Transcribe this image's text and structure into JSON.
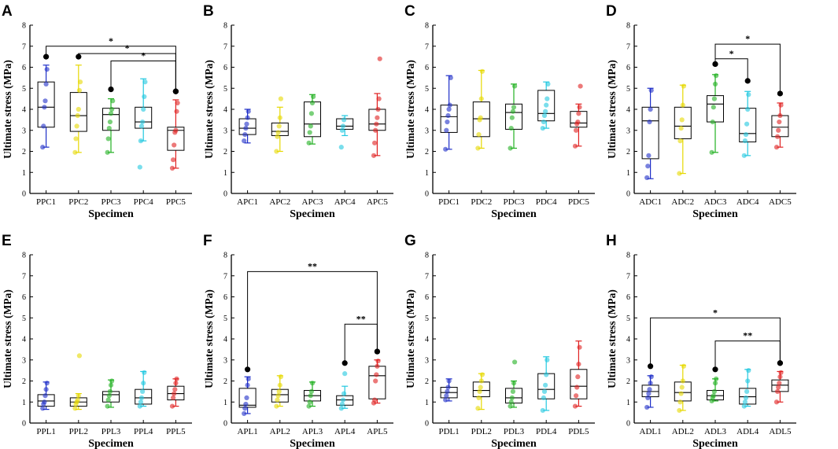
{
  "figure": {
    "ylabel": "Ultimate stress (MPa)",
    "xlabel": "Specimen",
    "ylim": [
      0,
      8
    ],
    "yticks": [
      0,
      1,
      2,
      3,
      4,
      5,
      6,
      7,
      8
    ]
  },
  "series_colors": [
    "#1f2fc8",
    "#e6d800",
    "#22b022",
    "#22c8e0",
    "#e02020"
  ],
  "chart_data": [
    {
      "panel": "A",
      "type": "box",
      "xlabel": "Specimen",
      "ylabel": "Ultimate stress (MPa)",
      "ylim": [
        0,
        8
      ],
      "categories": [
        "PPC1",
        "PPC2",
        "PPC3",
        "PPC4",
        "PPC5"
      ],
      "boxes": [
        {
          "q1": 3.15,
          "median": 4.1,
          "q3": 5.3,
          "min": 2.2,
          "max": 6.1
        },
        {
          "q1": 2.95,
          "median": 3.7,
          "q3": 4.8,
          "min": 1.95,
          "max": 6.1
        },
        {
          "q1": 3.0,
          "median": 3.75,
          "q3": 4.05,
          "min": 1.95,
          "max": 4.5
        },
        {
          "q1": 3.1,
          "median": 3.4,
          "q3": 4.1,
          "min": 2.5,
          "max": 5.45
        },
        {
          "q1": 2.05,
          "median": 3.0,
          "q3": 3.15,
          "min": 1.2,
          "max": 4.45
        }
      ],
      "points": [
        [
          2.2,
          3.2,
          4.1,
          4.4,
          5.2,
          5.9
        ],
        [
          1.95,
          2.6,
          3.2,
          3.7,
          4.0,
          4.9,
          5.3
        ],
        [
          1.95,
          2.6,
          3.1,
          3.4,
          3.8,
          4.0,
          4.4
        ],
        [
          1.25,
          2.5,
          3.2,
          3.4,
          4.0,
          4.6,
          5.3
        ],
        [
          1.2,
          1.6,
          2.3,
          2.9,
          3.0,
          3.9,
          4.3
        ]
      ],
      "significance": [
        {
          "from": "PPC1",
          "to": "PPC5",
          "label": "*",
          "y": 7.0,
          "ends": [
            6.5,
            4.85
          ]
        },
        {
          "from": "PPC2",
          "to": "PPC5",
          "label": "*",
          "y": 6.65,
          "ends": [
            6.5,
            4.85
          ]
        },
        {
          "from": "PPC3",
          "to": "PPC5",
          "label": "*",
          "y": 6.3,
          "ends": [
            4.95,
            4.85
          ]
        }
      ]
    },
    {
      "panel": "B",
      "type": "box",
      "xlabel": "Specimen",
      "ylabel": "Ultimate stress (MPa)",
      "ylim": [
        0,
        8
      ],
      "categories": [
        "APC1",
        "APC2",
        "APC3",
        "APC4",
        "APC5"
      ],
      "boxes": [
        {
          "q1": 2.8,
          "median": 3.1,
          "q3": 3.55,
          "min": 2.4,
          "max": 4.0
        },
        {
          "q1": 2.75,
          "median": 2.95,
          "q3": 3.35,
          "min": 2.0,
          "max": 4.1
        },
        {
          "q1": 2.7,
          "median": 3.3,
          "q3": 4.35,
          "min": 2.35,
          "max": 4.7
        },
        {
          "q1": 3.05,
          "median": 3.2,
          "q3": 3.55,
          "min": 2.75,
          "max": 3.7
        },
        {
          "q1": 3.0,
          "median": 3.3,
          "q3": 4.0,
          "min": 1.8,
          "max": 4.75
        }
      ],
      "points": [
        [
          2.5,
          2.8,
          3.1,
          3.3,
          3.6,
          3.9
        ],
        [
          2.0,
          2.7,
          2.9,
          3.2,
          3.6,
          4.5
        ],
        [
          2.4,
          2.9,
          3.2,
          3.8,
          4.3,
          4.6
        ],
        [
          2.2,
          3.0,
          3.2,
          3.5
        ],
        [
          1.8,
          2.4,
          3.0,
          3.3,
          3.6,
          4.0,
          4.5,
          6.4
        ]
      ],
      "significance": []
    },
    {
      "panel": "C",
      "type": "box",
      "xlabel": "Specimen",
      "ylabel": "Ultimate stress (MPa)",
      "ylim": [
        0,
        8
      ],
      "categories": [
        "PDC1",
        "PDC2",
        "PDC3",
        "PDC4",
        "PDC5"
      ],
      "boxes": [
        {
          "q1": 2.9,
          "median": 3.65,
          "q3": 4.2,
          "min": 2.1,
          "max": 5.6
        },
        {
          "q1": 2.7,
          "median": 3.55,
          "q3": 4.35,
          "min": 2.15,
          "max": 5.85
        },
        {
          "q1": 3.05,
          "median": 3.85,
          "q3": 4.25,
          "min": 2.15,
          "max": 5.2
        },
        {
          "q1": 3.45,
          "median": 3.8,
          "q3": 4.9,
          "min": 3.1,
          "max": 5.3
        },
        {
          "q1": 3.15,
          "median": 3.35,
          "q3": 3.9,
          "min": 2.25,
          "max": 4.25
        }
      ],
      "points": [
        [
          2.1,
          3.0,
          3.4,
          3.7,
          4.0,
          4.2,
          5.5
        ],
        [
          2.15,
          2.8,
          3.5,
          3.6,
          4.5,
          5.8
        ],
        [
          2.15,
          3.1,
          3.6,
          3.9,
          4.1,
          5.1
        ],
        [
          3.1,
          3.4,
          3.7,
          3.9,
          4.2,
          4.5,
          5.2
        ],
        [
          2.25,
          3.0,
          3.3,
          3.4,
          3.8,
          4.1,
          5.1
        ]
      ],
      "significance": []
    },
    {
      "panel": "D",
      "type": "box",
      "xlabel": "Specimen",
      "ylabel": "Ultimate stress (MPa)",
      "ylim": [
        0,
        8
      ],
      "categories": [
        "ADC1",
        "ADC2",
        "ADC3",
        "ADC4",
        "ADC5"
      ],
      "boxes": [
        {
          "q1": 1.65,
          "median": 3.45,
          "q3": 4.1,
          "min": 0.7,
          "max": 5.0
        },
        {
          "q1": 2.6,
          "median": 3.2,
          "q3": 4.1,
          "min": 0.95,
          "max": 5.15
        },
        {
          "q1": 3.4,
          "median": 4.25,
          "q3": 4.65,
          "min": 1.95,
          "max": 5.65
        },
        {
          "q1": 2.45,
          "median": 2.85,
          "q3": 4.05,
          "min": 1.8,
          "max": 4.85
        },
        {
          "q1": 2.7,
          "median": 3.15,
          "q3": 3.7,
          "min": 2.2,
          "max": 4.3
        }
      ],
      "points": [
        [
          0.75,
          1.3,
          1.8,
          3.4,
          4.0,
          4.9
        ],
        [
          0.95,
          2.5,
          3.1,
          3.5,
          4.2,
          5.1
        ],
        [
          1.95,
          3.4,
          4.1,
          4.5,
          5.2,
          5.6
        ],
        [
          1.8,
          2.5,
          2.8,
          3.3,
          4.0,
          4.7
        ],
        [
          2.2,
          2.7,
          3.0,
          3.4,
          3.7,
          4.2
        ]
      ],
      "significance": [
        {
          "from": "ADC3",
          "to": "ADC5",
          "label": "*",
          "y": 7.1,
          "ends": [
            6.15,
            4.75
          ]
        },
        {
          "from": "ADC3",
          "to": "ADC4",
          "label": "*",
          "y": 6.4,
          "ends": [
            6.15,
            5.35
          ]
        }
      ]
    },
    {
      "panel": "E",
      "type": "box",
      "xlabel": "Specimen",
      "ylabel": "Ultimate stress (MPa)",
      "ylim": [
        0,
        8
      ],
      "categories": [
        "PPL1",
        "PPL2",
        "PPL3",
        "PPL4",
        "PPL5"
      ],
      "boxes": [
        {
          "q1": 0.8,
          "median": 1.05,
          "q3": 1.35,
          "min": 0.65,
          "max": 1.95
        },
        {
          "q1": 0.8,
          "median": 1.0,
          "q3": 1.2,
          "min": 0.65,
          "max": 1.4
        },
        {
          "q1": 1.0,
          "median": 1.35,
          "q3": 1.5,
          "min": 0.75,
          "max": 2.05
        },
        {
          "q1": 0.9,
          "median": 1.2,
          "q3": 1.6,
          "min": 0.8,
          "max": 2.45
        },
        {
          "q1": 1.1,
          "median": 1.4,
          "q3": 1.75,
          "min": 0.8,
          "max": 2.1
        }
      ],
      "points": [
        [
          0.7,
          0.9,
          1.0,
          1.3,
          1.6,
          1.9
        ],
        [
          0.7,
          0.9,
          1.0,
          1.1,
          1.3,
          3.2
        ],
        [
          0.8,
          1.1,
          1.3,
          1.5,
          1.8,
          2.0
        ],
        [
          0.8,
          1.0,
          1.2,
          1.5,
          1.9,
          2.4
        ],
        [
          0.8,
          1.2,
          1.4,
          1.6,
          1.9,
          2.1
        ]
      ],
      "significance": []
    },
    {
      "panel": "F",
      "type": "box",
      "xlabel": "Specimen",
      "ylabel": "Ultimate stress (MPa)",
      "ylim": [
        0,
        8
      ],
      "categories": [
        "APL1",
        "APL2",
        "APL3",
        "APL4",
        "APL5"
      ],
      "boxes": [
        {
          "q1": 0.75,
          "median": 0.85,
          "q3": 1.65,
          "min": 0.45,
          "max": 2.2
        },
        {
          "q1": 1.0,
          "median": 1.35,
          "q3": 1.6,
          "min": 0.8,
          "max": 2.25
        },
        {
          "q1": 1.05,
          "median": 1.3,
          "q3": 1.55,
          "min": 0.8,
          "max": 1.95
        },
        {
          "q1": 0.85,
          "median": 1.1,
          "q3": 1.3,
          "min": 0.7,
          "max": 1.75
        },
        {
          "q1": 1.15,
          "median": 2.25,
          "q3": 2.7,
          "min": 0.95,
          "max": 3.0
        }
      ],
      "points": [
        [
          0.45,
          0.7,
          0.9,
          1.2,
          1.8,
          2.1
        ],
        [
          0.8,
          1.1,
          1.3,
          1.5,
          1.8,
          2.2
        ],
        [
          0.8,
          1.0,
          1.3,
          1.5,
          1.9
        ],
        [
          0.7,
          0.9,
          1.1,
          1.4,
          2.35
        ],
        [
          0.95,
          1.1,
          2.0,
          2.3,
          2.7,
          2.95
        ]
      ],
      "significance": [
        {
          "from": "APL1",
          "to": "APL5",
          "label": "**",
          "y": 7.2,
          "ends": [
            2.55,
            3.4
          ]
        },
        {
          "from": "APL4",
          "to": "APL5",
          "label": "**",
          "y": 4.7,
          "ends": [
            2.85,
            3.4
          ]
        }
      ]
    },
    {
      "panel": "G",
      "type": "box",
      "xlabel": "Specimen",
      "ylabel": "Ultimate stress (MPa)",
      "ylim": [
        0,
        8
      ],
      "categories": [
        "PDL1",
        "PDL2",
        "PDL3",
        "PDL4",
        "PDL5"
      ],
      "boxes": [
        {
          "q1": 1.2,
          "median": 1.45,
          "q3": 1.7,
          "min": 1.05,
          "max": 2.1
        },
        {
          "q1": 1.25,
          "median": 1.55,
          "q3": 1.95,
          "min": 0.65,
          "max": 2.35
        },
        {
          "q1": 0.95,
          "median": 1.2,
          "q3": 1.65,
          "min": 0.75,
          "max": 2.0
        },
        {
          "q1": 1.15,
          "median": 1.6,
          "q3": 2.35,
          "min": 0.6,
          "max": 3.15
        },
        {
          "q1": 1.15,
          "median": 1.75,
          "q3": 2.55,
          "min": 0.8,
          "max": 3.9
        }
      ],
      "points": [
        [
          1.1,
          1.3,
          1.5,
          1.7,
          2.0
        ],
        [
          0.7,
          1.2,
          1.5,
          1.7,
          2.0,
          2.3
        ],
        [
          0.8,
          1.0,
          1.2,
          1.5,
          1.9,
          2.9
        ],
        [
          0.6,
          1.2,
          1.5,
          1.8,
          2.3,
          3.0
        ],
        [
          0.8,
          1.3,
          1.7,
          2.2,
          2.8,
          3.6
        ]
      ],
      "significance": []
    },
    {
      "panel": "H",
      "type": "box",
      "xlabel": "Specimen",
      "ylabel": "Ultimate stress (MPa)",
      "ylim": [
        0,
        8
      ],
      "categories": [
        "ADL1",
        "ADL2",
        "ADL3",
        "ADL4",
        "ADL5"
      ],
      "boxes": [
        {
          "q1": 1.25,
          "median": 1.5,
          "q3": 1.8,
          "min": 0.75,
          "max": 2.25
        },
        {
          "q1": 1.05,
          "median": 1.45,
          "q3": 1.95,
          "min": 0.6,
          "max": 2.75
        },
        {
          "q1": 1.1,
          "median": 1.3,
          "q3": 1.55,
          "min": 1.05,
          "max": 2.1
        },
        {
          "q1": 0.9,
          "median": 1.25,
          "q3": 1.65,
          "min": 0.8,
          "max": 2.55
        },
        {
          "q1": 1.5,
          "median": 1.8,
          "q3": 2.05,
          "min": 1.0,
          "max": 2.45
        }
      ],
      "points": [
        [
          0.75,
          1.2,
          1.4,
          1.6,
          1.9,
          2.2
        ],
        [
          0.6,
          1.0,
          1.4,
          1.7,
          2.0,
          2.7
        ],
        [
          1.05,
          1.2,
          1.3,
          1.5,
          1.9,
          2.1
        ],
        [
          0.8,
          1.0,
          1.2,
          1.5,
          2.0,
          2.5
        ],
        [
          1.0,
          1.5,
          1.7,
          1.9,
          2.2,
          2.4
        ]
      ],
      "significance": [
        {
          "from": "ADL1",
          "to": "ADL5",
          "label": "*",
          "y": 5.0,
          "ends": [
            2.7,
            2.85
          ]
        },
        {
          "from": "ADL3",
          "to": "ADL5",
          "label": "**",
          "y": 3.9,
          "ends": [
            2.55,
            2.85
          ]
        }
      ]
    }
  ]
}
